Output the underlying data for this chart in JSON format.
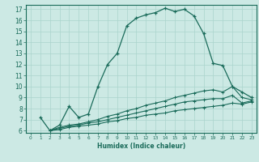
{
  "xlabel": "Humidex (Indice chaleur)",
  "bg_color": "#cce9e4",
  "line_color": "#1a6b5a",
  "grid_color": "#aad4cc",
  "xlim": [
    -0.5,
    23.5
  ],
  "ylim": [
    5.8,
    17.4
  ],
  "yticks": [
    6,
    7,
    8,
    9,
    10,
    11,
    12,
    13,
    14,
    15,
    16,
    17
  ],
  "xticks": [
    0,
    1,
    2,
    3,
    4,
    5,
    6,
    7,
    8,
    9,
    10,
    11,
    12,
    13,
    14,
    15,
    16,
    17,
    18,
    19,
    20,
    21,
    22,
    23
  ],
  "line1": {
    "x": [
      1,
      2,
      3,
      4,
      5,
      6,
      7,
      8,
      9,
      10,
      11,
      12,
      13,
      14,
      15,
      16,
      17,
      18,
      19,
      20,
      21,
      22,
      23
    ],
    "y": [
      7.2,
      6.0,
      6.5,
      8.2,
      7.2,
      7.5,
      10.0,
      12.0,
      13.0,
      15.5,
      16.2,
      16.5,
      16.7,
      17.1,
      16.8,
      17.0,
      16.4,
      14.8,
      12.1,
      11.9,
      10.0,
      9.5,
      9.0
    ]
  },
  "line2": {
    "x": [
      2,
      3,
      4,
      5,
      6,
      7,
      8,
      9,
      10,
      11,
      12,
      13,
      14,
      15,
      16,
      17,
      18,
      19,
      20,
      21,
      22,
      23
    ],
    "y": [
      6.0,
      6.3,
      6.5,
      6.6,
      6.8,
      7.0,
      7.3,
      7.5,
      7.8,
      8.0,
      8.3,
      8.5,
      8.7,
      9.0,
      9.2,
      9.4,
      9.6,
      9.7,
      9.5,
      10.0,
      9.0,
      8.8
    ]
  },
  "line3": {
    "x": [
      2,
      3,
      4,
      5,
      6,
      7,
      8,
      9,
      10,
      11,
      12,
      13,
      14,
      15,
      16,
      17,
      18,
      19,
      20,
      21,
      22,
      23
    ],
    "y": [
      6.0,
      6.2,
      6.4,
      6.5,
      6.7,
      6.8,
      7.0,
      7.2,
      7.4,
      7.6,
      7.8,
      8.0,
      8.2,
      8.4,
      8.6,
      8.7,
      8.8,
      8.9,
      8.9,
      9.2,
      8.5,
      8.7
    ]
  },
  "line4": {
    "x": [
      2,
      3,
      4,
      5,
      6,
      7,
      8,
      9,
      10,
      11,
      12,
      13,
      14,
      15,
      16,
      17,
      18,
      19,
      20,
      21,
      22,
      23
    ],
    "y": [
      6.0,
      6.1,
      6.3,
      6.4,
      6.5,
      6.6,
      6.8,
      6.9,
      7.1,
      7.2,
      7.4,
      7.5,
      7.6,
      7.8,
      7.9,
      8.0,
      8.1,
      8.2,
      8.3,
      8.5,
      8.4,
      8.6
    ]
  }
}
